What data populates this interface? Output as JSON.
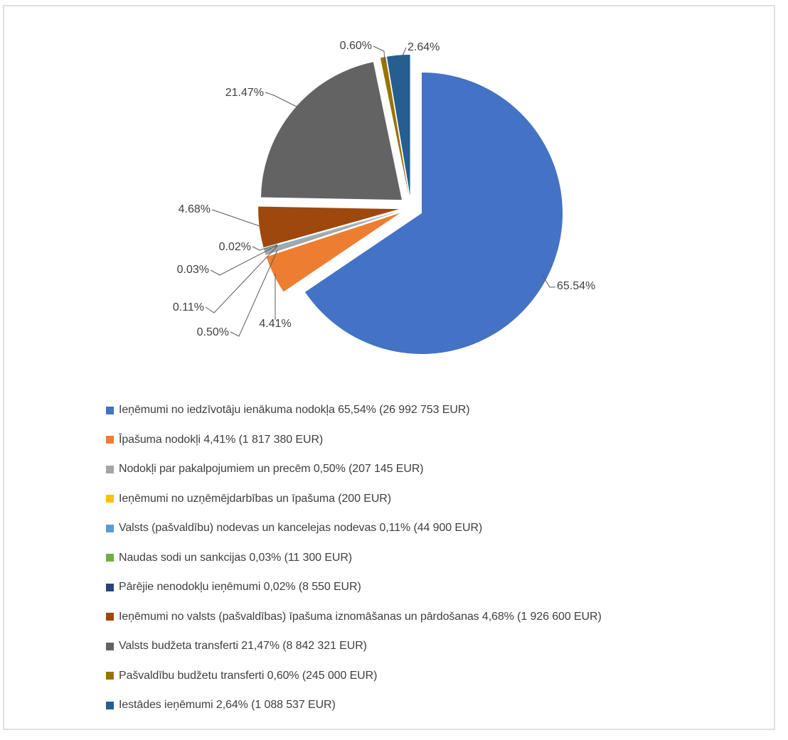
{
  "page": {
    "background": "#FFFFFF",
    "frame_border_color": "#E0E0E0"
  },
  "chart_data": {
    "type": "pie",
    "exploded": true,
    "direction": "clockwise",
    "start_angle_deg": 0,
    "legend_position": "bottom-left",
    "label_color": "#404040",
    "leader_line_color": "#595959",
    "slices": [
      {
        "legend_label": "Ieņēmumi no iedzīvotāju ienākuma nodokļa 65,54% (26 992 753 EUR)",
        "chart_label": "65.54%",
        "percent": 65.54,
        "value_display": "26 992 753 EUR",
        "color": "#4472C4"
      },
      {
        "legend_label": "Īpašuma nodokļi 4,41% (1 817 380 EUR)",
        "chart_label": "4.41%",
        "percent": 4.41,
        "value_display": "1 817 380 EUR",
        "color": "#ED7D31"
      },
      {
        "legend_label": "Nodokļi par pakalpojumiem un precēm 0,50% (207 145 EUR)",
        "chart_label": "0.50%",
        "percent": 0.5,
        "value_display": "207 145 EUR",
        "color": "#A5A5A5"
      },
      {
        "legend_label": "Ieņēmumi no uzņēmējdarbības un īpašuma (200 EUR)",
        "chart_label": null,
        "percent": 0.0005,
        "value_display": "200 EUR",
        "color": "#FFC000"
      },
      {
        "legend_label": "Valsts (pašvaldību) nodevas un kancelejas nodevas 0,11% (44 900 EUR)",
        "chart_label": "0.11%",
        "percent": 0.11,
        "value_display": "44 900 EUR",
        "color": "#5B9BD5"
      },
      {
        "legend_label": "Naudas sodi un sankcijas 0,03% (11 300 EUR)",
        "chart_label": "0.03%",
        "percent": 0.03,
        "value_display": "11 300 EUR",
        "color": "#70AD47"
      },
      {
        "legend_label": "Pārējie nenodokļu ieņēmumi 0,02% (8 550 EUR)",
        "chart_label": "0.02%",
        "percent": 0.02,
        "value_display": "8 550 EUR",
        "color": "#264478"
      },
      {
        "legend_label": "Ieņēmumi no valsts (pašvaldības) īpašuma iznomāšanas un pārdošanas 4,68% (1 926 600 EUR)",
        "chart_label": "4.68%",
        "percent": 4.68,
        "value_display": "1 926 600 EUR",
        "color": "#9E480E"
      },
      {
        "legend_label": "Valsts budžeta transferti 21,47% (8 842 321 EUR)",
        "chart_label": "21.47%",
        "percent": 21.47,
        "value_display": "8 842 321 EUR",
        "color": "#636363"
      },
      {
        "legend_label": "Pašvaldību budžetu transferti 0,60% (245 000 EUR)",
        "chart_label": "0.60%",
        "percent": 0.6,
        "value_display": "245 000 EUR",
        "color": "#997300"
      },
      {
        "legend_label": "Iestādes ieņēmumi 2,64% (1 088 537 EUR)",
        "chart_label": "2.64%",
        "percent": 2.64,
        "value_display": "1 088 537 EUR",
        "color": "#255E91"
      }
    ]
  }
}
